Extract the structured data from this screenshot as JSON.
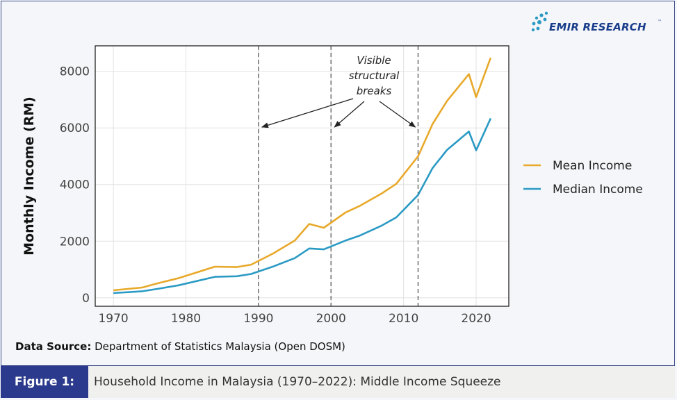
{
  "brand": {
    "name": "EMIR RESEARCH",
    "tm": "™"
  },
  "colors": {
    "mean": "#e8a92a",
    "median": "#2a9ac4",
    "accent": "#2b3a8c",
    "annotation": "#222222"
  },
  "source": {
    "label": "Data Source:",
    "text": "Department of Statistics Malaysia (Open DOSM)"
  },
  "figure": {
    "label": "Figure 1:",
    "title": "Household Income in Malaysia (1970–2022): Middle Income Squeeze"
  },
  "chart_data": {
    "type": "line",
    "title": "",
    "xlabel": "",
    "ylabel": "Monthly Income (RM)",
    "xlim": [
      1967.5,
      2024.5
    ],
    "ylim": [
      -300,
      8900
    ],
    "xticks": [
      1970,
      1980,
      1990,
      2000,
      2010,
      2020
    ],
    "yticks": [
      0,
      2000,
      4000,
      6000,
      8000
    ],
    "grid": true,
    "legend_position": "right",
    "series": [
      {
        "name": "Mean Income",
        "color_key": "mean",
        "x": [
          1970,
          1974,
          1976,
          1979,
          1984,
          1987,
          1989,
          1992,
          1995,
          1997,
          1999,
          2002,
          2004,
          2007,
          2009,
          2012,
          2014,
          2016,
          2019,
          2020,
          2022
        ],
        "y": [
          264,
          362,
          505,
          693,
          1098,
          1083,
          1169,
          1563,
          2020,
          2606,
          2472,
          3011,
          3249,
          3686,
          4025,
          5000,
          6141,
          6958,
          7901,
          7089,
          8479
        ]
      },
      {
        "name": "Median Income",
        "color_key": "median",
        "x": [
          1970,
          1974,
          1976,
          1979,
          1984,
          1987,
          1989,
          1992,
          1995,
          1997,
          1999,
          2002,
          2004,
          2007,
          2009,
          2012,
          2014,
          2016,
          2019,
          2020,
          2022
        ],
        "y": [
          166,
          230,
          310,
          440,
          740,
          760,
          840,
          1100,
          1400,
          1740,
          1710,
          2020,
          2200,
          2550,
          2840,
          3630,
          4585,
          5228,
          5873,
          5209,
          6338
        ]
      }
    ],
    "breaks": [
      1990,
      2000,
      2012
    ],
    "annotation": {
      "lines": [
        "Visible",
        "structural",
        "breaks"
      ]
    }
  }
}
